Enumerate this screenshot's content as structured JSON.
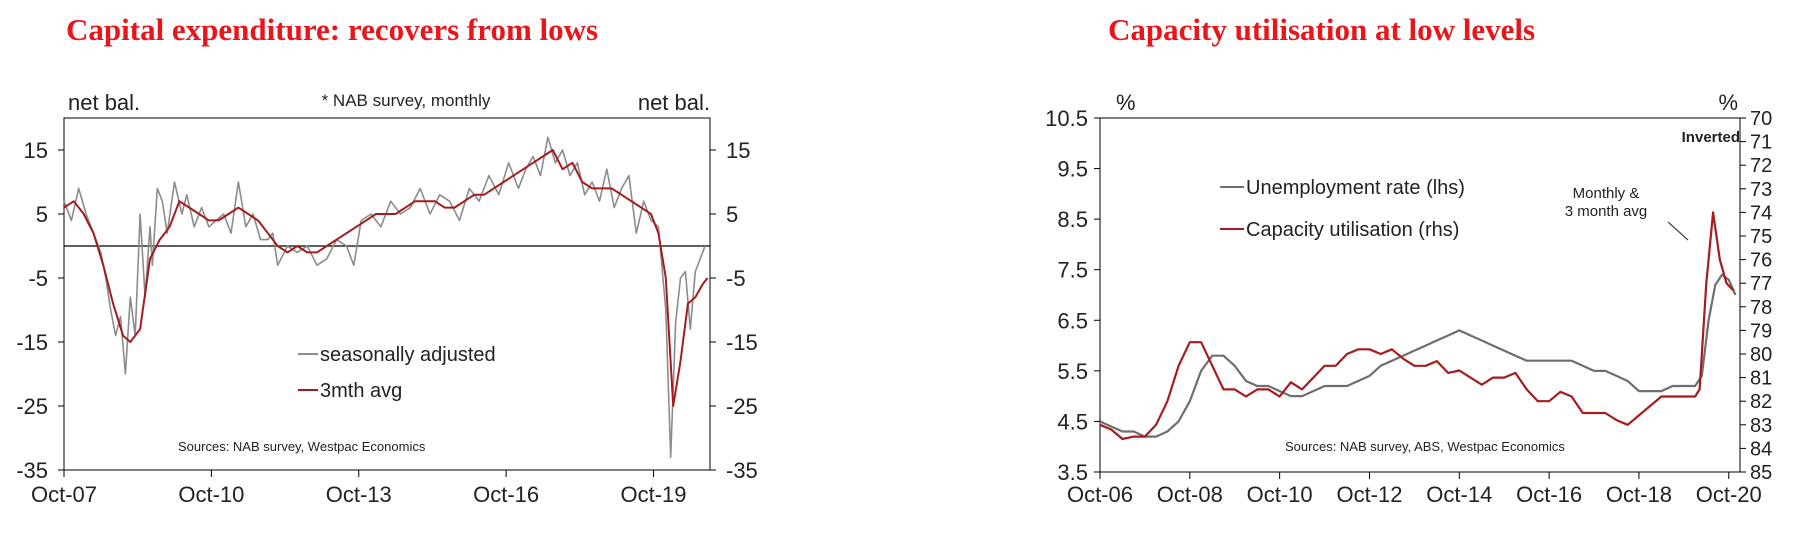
{
  "chart_data": [
    {
      "type": "line",
      "title": "Capital expenditure: recovers from lows",
      "left_unit": "net bal.",
      "right_unit": "net bal.",
      "note": "* NAB survey, monthly",
      "source": "Sources: NAB survey, Westpac Economics",
      "ylim": [
        -35,
        20
      ],
      "yticks": [
        15,
        5,
        -5,
        -15,
        -25,
        -35
      ],
      "xlim": [
        2007.75,
        2020.9
      ],
      "xticks": [
        {
          "label": "Oct-07",
          "x": 2007.75
        },
        {
          "label": "Oct-10",
          "x": 2010.75
        },
        {
          "label": "Oct-13",
          "x": 2013.75
        },
        {
          "label": "Oct-16",
          "x": 2016.75
        },
        {
          "label": "Oct-19",
          "x": 2019.75
        }
      ],
      "zero_line": 0,
      "legend": [
        "seasonally adjusted",
        "3mth avg"
      ],
      "series": [
        {
          "name": "seasonally adjusted",
          "color": "#8c8c8c",
          "x": [
            2007.75,
            2007.9,
            2008.05,
            2008.2,
            2008.35,
            2008.5,
            2008.6,
            2008.7,
            2008.8,
            2008.9,
            2009.0,
            2009.1,
            2009.2,
            2009.3,
            2009.4,
            2009.5,
            2009.55,
            2009.65,
            2009.75,
            2009.85,
            2010.0,
            2010.15,
            2010.25,
            2010.4,
            2010.55,
            2010.7,
            2010.85,
            2011.0,
            2011.15,
            2011.3,
            2011.45,
            2011.6,
            2011.75,
            2011.9,
            2012.0,
            2012.1,
            2012.3,
            2012.5,
            2012.7,
            2012.9,
            2013.1,
            2013.3,
            2013.5,
            2013.65,
            2013.8,
            2014.0,
            2014.2,
            2014.4,
            2014.6,
            2014.8,
            2015.0,
            2015.2,
            2015.4,
            2015.6,
            2015.8,
            2016.0,
            2016.2,
            2016.4,
            2016.6,
            2016.8,
            2017.0,
            2017.15,
            2017.3,
            2017.45,
            2017.6,
            2017.75,
            2017.9,
            2018.05,
            2018.2,
            2018.35,
            2018.5,
            2018.65,
            2018.8,
            2018.95,
            2019.1,
            2019.25,
            2019.4,
            2019.55,
            2019.7,
            2019.85,
            2020.0,
            2020.1,
            2020.2,
            2020.3,
            2020.4,
            2020.5,
            2020.6,
            2020.7,
            2020.8
          ],
          "values": [
            7,
            4,
            9,
            5,
            2,
            -1,
            -5,
            -10,
            -14,
            -11,
            -20,
            -8,
            -14,
            5,
            -8,
            3,
            -3,
            9,
            7,
            2,
            10,
            5,
            8,
            3,
            6,
            3,
            4,
            5,
            2,
            10,
            3,
            5,
            1,
            1,
            2,
            -3,
            0,
            -1,
            0,
            -3,
            -2,
            1,
            0,
            -3,
            4,
            5,
            3,
            7,
            5,
            6,
            9,
            5,
            8,
            7,
            4,
            9,
            7,
            11,
            8,
            13,
            9,
            12,
            14,
            11,
            17,
            13,
            15,
            11,
            13,
            8,
            10,
            7,
            12,
            6,
            9,
            11,
            2,
            7,
            4,
            3,
            -10,
            -33,
            -12,
            -5,
            -4,
            -13,
            -4,
            -2,
            0
          ]
        },
        {
          "name": "3mth avg",
          "color": "#a51c1f",
          "x": [
            2007.75,
            2007.95,
            2008.15,
            2008.35,
            2008.55,
            2008.75,
            2008.95,
            2009.1,
            2009.3,
            2009.5,
            2009.7,
            2009.9,
            2010.1,
            2010.3,
            2010.5,
            2010.7,
            2010.9,
            2011.1,
            2011.3,
            2011.5,
            2011.7,
            2011.9,
            2012.1,
            2012.3,
            2012.5,
            2012.7,
            2012.9,
            2013.1,
            2013.3,
            2013.5,
            2013.7,
            2013.9,
            2014.1,
            2014.3,
            2014.5,
            2014.7,
            2014.9,
            2015.1,
            2015.3,
            2015.5,
            2015.7,
            2015.9,
            2016.1,
            2016.3,
            2016.5,
            2016.7,
            2016.9,
            2017.1,
            2017.3,
            2017.5,
            2017.7,
            2017.9,
            2018.1,
            2018.3,
            2018.5,
            2018.7,
            2018.9,
            2019.1,
            2019.3,
            2019.5,
            2019.7,
            2019.85,
            2020.0,
            2020.15,
            2020.3,
            2020.45,
            2020.6,
            2020.75,
            2020.85
          ],
          "values": [
            6,
            7,
            5,
            2,
            -3,
            -9,
            -14,
            -15,
            -13,
            -2,
            1,
            3,
            7,
            6,
            5,
            4,
            4,
            5,
            6,
            5,
            4,
            2,
            0,
            -1,
            0,
            -1,
            -1,
            0,
            1,
            2,
            3,
            4,
            5,
            5,
            5,
            6,
            7,
            7,
            7,
            6,
            6,
            7,
            8,
            8,
            9,
            10,
            11,
            12,
            13,
            14,
            15,
            12,
            13,
            10,
            9,
            9,
            9,
            8,
            7,
            6,
            5,
            2,
            -5,
            -25,
            -18,
            -9,
            -8,
            -6,
            -5
          ]
        }
      ]
    },
    {
      "type": "line",
      "title": "Capacity utilisation at low levels",
      "left_unit": "%",
      "right_unit": "%",
      "inverted_label": "Inverted",
      "annotation": "Monthly &\n3 month avg",
      "source": "Sources: NAB survey, ABS, Westpac Economics",
      "ylim": [
        3.5,
        10.5
      ],
      "yticks": [
        10.5,
        9.5,
        8.5,
        7.5,
        6.5,
        5.5,
        4.5,
        3.5
      ],
      "y2lim": [
        70,
        85
      ],
      "y2ticks": [
        70,
        71,
        72,
        73,
        74,
        75,
        76,
        77,
        78,
        79,
        80,
        81,
        82,
        83,
        84,
        85
      ],
      "xlim": [
        2006.75,
        2021.0
      ],
      "xticks": [
        {
          "label": "Oct-06",
          "x": 2006.75
        },
        {
          "label": "Oct-08",
          "x": 2008.75
        },
        {
          "label": "Oct-10",
          "x": 2010.75
        },
        {
          "label": "Oct-12",
          "x": 2012.75
        },
        {
          "label": "Oct-14",
          "x": 2014.75
        },
        {
          "label": "Oct-16",
          "x": 2016.75
        },
        {
          "label": "Oct-18",
          "x": 2018.75
        },
        {
          "label": "Oct-20",
          "x": 2020.75
        }
      ],
      "legend": [
        "Unemployment rate (lhs)",
        "Capacity utilisation (rhs)"
      ],
      "series": [
        {
          "name": "Unemployment rate (lhs)",
          "axis": "left",
          "color": "#6e6e6e",
          "x": [
            2006.75,
            2007.0,
            2007.25,
            2007.5,
            2007.75,
            2008.0,
            2008.25,
            2008.5,
            2008.75,
            2009.0,
            2009.25,
            2009.5,
            2009.75,
            2010.0,
            2010.25,
            2010.5,
            2010.75,
            2011.0,
            2011.25,
            2011.5,
            2011.75,
            2012.0,
            2012.25,
            2012.5,
            2012.75,
            2013.0,
            2013.25,
            2013.5,
            2013.75,
            2014.0,
            2014.25,
            2014.5,
            2014.75,
            2015.0,
            2015.25,
            2015.5,
            2015.75,
            2016.0,
            2016.25,
            2016.5,
            2016.75,
            2017.0,
            2017.25,
            2017.5,
            2017.75,
            2018.0,
            2018.25,
            2018.5,
            2018.75,
            2019.0,
            2019.25,
            2019.5,
            2019.75,
            2020.0,
            2020.15,
            2020.3,
            2020.45,
            2020.6,
            2020.75,
            2020.9
          ],
          "values": [
            4.5,
            4.4,
            4.3,
            4.3,
            4.2,
            4.2,
            4.3,
            4.5,
            4.9,
            5.5,
            5.8,
            5.8,
            5.6,
            5.3,
            5.2,
            5.2,
            5.1,
            5.0,
            5.0,
            5.1,
            5.2,
            5.2,
            5.2,
            5.3,
            5.4,
            5.6,
            5.7,
            5.8,
            5.9,
            6.0,
            6.1,
            6.2,
            6.3,
            6.2,
            6.1,
            6.0,
            5.9,
            5.8,
            5.7,
            5.7,
            5.7,
            5.7,
            5.7,
            5.6,
            5.5,
            5.5,
            5.4,
            5.3,
            5.1,
            5.1,
            5.1,
            5.2,
            5.2,
            5.2,
            5.4,
            6.5,
            7.2,
            7.4,
            7.3,
            7.0
          ]
        },
        {
          "name": "Capacity utilisation (rhs)",
          "axis": "right",
          "color": "#a51c1f",
          "x": [
            2006.75,
            2007.0,
            2007.25,
            2007.5,
            2007.75,
            2008.0,
            2008.25,
            2008.5,
            2008.75,
            2009.0,
            2009.25,
            2009.5,
            2009.75,
            2010.0,
            2010.25,
            2010.5,
            2010.75,
            2011.0,
            2011.25,
            2011.5,
            2011.75,
            2012.0,
            2012.25,
            2012.5,
            2012.75,
            2013.0,
            2013.25,
            2013.5,
            2013.75,
            2014.0,
            2014.25,
            2014.5,
            2014.75,
            2015.0,
            2015.25,
            2015.5,
            2015.75,
            2016.0,
            2016.25,
            2016.5,
            2016.75,
            2017.0,
            2017.25,
            2017.5,
            2017.75,
            2018.0,
            2018.25,
            2018.5,
            2018.75,
            2019.0,
            2019.25,
            2019.5,
            2019.75,
            2020.0,
            2020.1,
            2020.25,
            2020.4,
            2020.55,
            2020.7,
            2020.85
          ],
          "values": [
            83.0,
            83.2,
            83.6,
            83.5,
            83.5,
            83.0,
            82.0,
            80.5,
            79.5,
            79.5,
            80.5,
            81.5,
            81.5,
            81.8,
            81.5,
            81.5,
            81.8,
            81.2,
            81.5,
            81.0,
            80.5,
            80.5,
            80.0,
            79.8,
            79.8,
            80.0,
            79.8,
            80.2,
            80.5,
            80.5,
            80.3,
            80.8,
            80.7,
            81.0,
            81.3,
            81.0,
            81.0,
            80.8,
            81.5,
            82.0,
            82.0,
            81.6,
            81.8,
            82.5,
            82.5,
            82.5,
            82.8,
            83.0,
            82.6,
            82.2,
            81.8,
            81.8,
            81.8,
            81.8,
            81.5,
            77.0,
            74.0,
            76.0,
            77.0,
            77.3
          ]
        }
      ]
    }
  ]
}
